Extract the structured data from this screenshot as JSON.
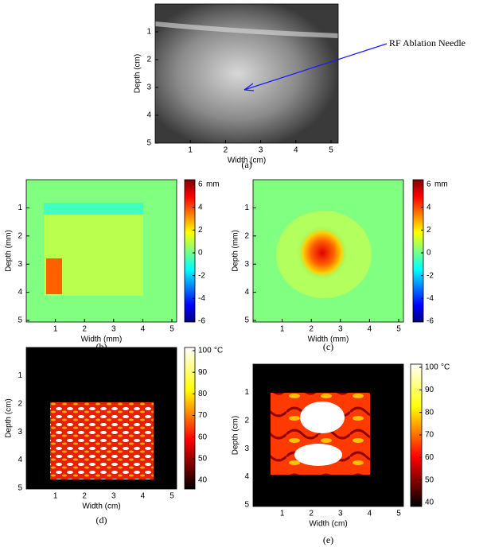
{
  "annotation": "RF Ablation Needle",
  "panels": [
    {
      "caption": "(a)",
      "xlabel": "Width (cm)",
      "ylabel": "Depth (cm)",
      "xticks": [
        1,
        2,
        3,
        4,
        5
      ],
      "yticks": [
        1,
        2,
        3,
        4,
        5
      ]
    },
    {
      "caption": "(b)",
      "xlabel": "Width (mm)",
      "ylabel": "Depth (mm)",
      "xticks": [
        1,
        2,
        3,
        4,
        5
      ],
      "yticks": [
        1,
        2,
        3,
        4,
        5
      ],
      "colorbar": {
        "ticks": [
          6,
          4,
          2,
          0,
          -2,
          -4,
          -6
        ],
        "unit": "mm"
      }
    },
    {
      "caption": "(c)",
      "xlabel": "Width (mm)",
      "ylabel": "Depth (mm)",
      "xticks": [
        1,
        2,
        3,
        4,
        5
      ],
      "yticks": [
        1,
        2,
        3,
        4,
        5
      ],
      "colorbar": {
        "ticks": [
          6,
          4,
          2,
          0,
          -2,
          -4,
          -6
        ],
        "unit": "mm"
      }
    },
    {
      "caption": "(d)",
      "xlabel": "Width (cm)",
      "ylabel": "Depth (cm)",
      "xticks": [
        1,
        2,
        3,
        4,
        5
      ],
      "yticks": [
        1,
        2,
        3,
        4,
        5
      ],
      "colorbar": {
        "ticks": [
          100,
          90,
          80,
          70,
          60,
          50,
          40
        ],
        "unit": "°C"
      }
    },
    {
      "caption": "(e)",
      "xlabel": "Width (cm)",
      "ylabel": "Depth (cm)",
      "xticks": [
        1,
        2,
        3,
        4,
        5
      ],
      "yticks": [
        1,
        2,
        3,
        4,
        5
      ],
      "colorbar": {
        "ticks": [
          100,
          90,
          80,
          70,
          60,
          50,
          40
        ],
        "unit": "°C"
      }
    }
  ]
}
